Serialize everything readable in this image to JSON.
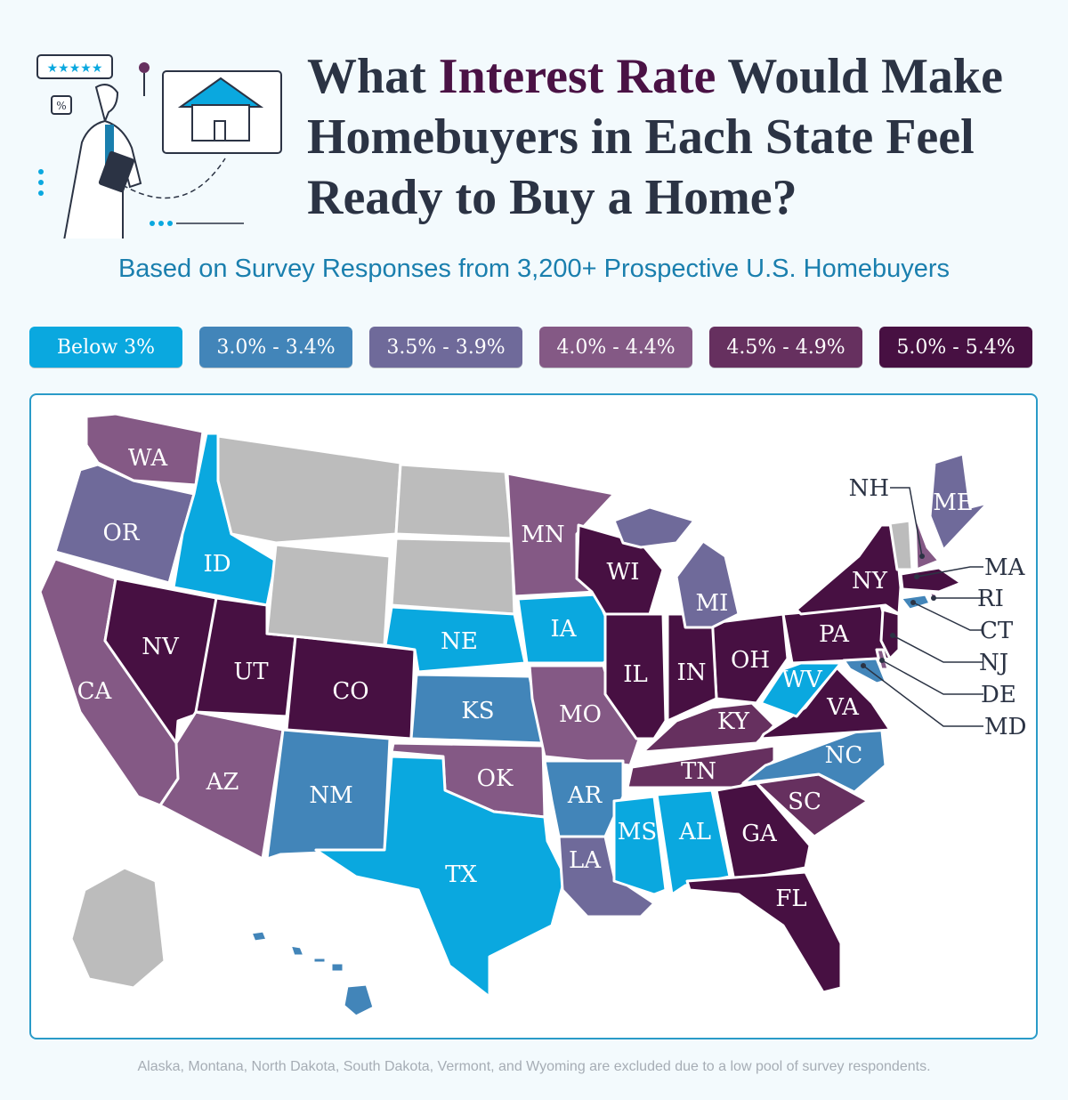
{
  "header": {
    "title_pre": "What ",
    "title_highlight": "Interest Rate",
    "title_post": " Would Make Homebuyers in Each State Feel Ready to Buy a Home?",
    "subtitle": "Based on Survey Responses from 3,200+ Prospective U.S. Homebuyers"
  },
  "legend": [
    {
      "key": "b3",
      "label": "Below 3%",
      "color": "#0aa8df"
    },
    {
      "key": "r30",
      "label": "3.0% - 3.4%",
      "color": "#4285b9"
    },
    {
      "key": "r35",
      "label": "3.5% - 3.9%",
      "color": "#6f6a9a"
    },
    {
      "key": "r40",
      "label": "4.0% - 4.4%",
      "color": "#845985"
    },
    {
      "key": "r45",
      "label": "4.5% - 4.9%",
      "color": "#66305f"
    },
    {
      "key": "r50",
      "label": "5.0% - 5.4%",
      "color": "#471042"
    }
  ],
  "excluded_color": "#bcbcbc",
  "states": {
    "WA": "r40",
    "OR": "r35",
    "CA": "r40",
    "NV": "r50",
    "ID": "b3",
    "UT": "r50",
    "AZ": "r40",
    "CO": "r50",
    "NM": "r30",
    "TX": "b3",
    "NE": "b3",
    "KS": "r30",
    "OK": "r40",
    "MN": "r40",
    "IA": "b3",
    "MO": "r40",
    "AR": "r30",
    "LA": "r35",
    "WI": "r50",
    "IL": "r50",
    "MI": "r35",
    "IN": "r50",
    "OH": "r50",
    "KY": "r45",
    "TN": "r45",
    "MS": "b3",
    "AL": "b3",
    "GA": "r50",
    "FL": "r50",
    "SC": "r45",
    "NC": "r30",
    "VA": "r50",
    "WV": "b3",
    "PA": "r50",
    "NY": "r50",
    "NJ": "r50",
    "DE": "r40",
    "MD": "r30",
    "CT": "r30",
    "RI": "r40",
    "MA": "r50",
    "NH": "r40",
    "ME": "r35",
    "HI": "r30",
    "AK": "excluded",
    "MT": "excluded",
    "ND": "excluded",
    "SD": "excluded",
    "WY": "excluded",
    "VT": "excluded"
  },
  "footer": "Alaska, Montana, North Dakota, South Dakota, Vermont, and Wyoming are excluded due to a low pool of survey respondents."
}
